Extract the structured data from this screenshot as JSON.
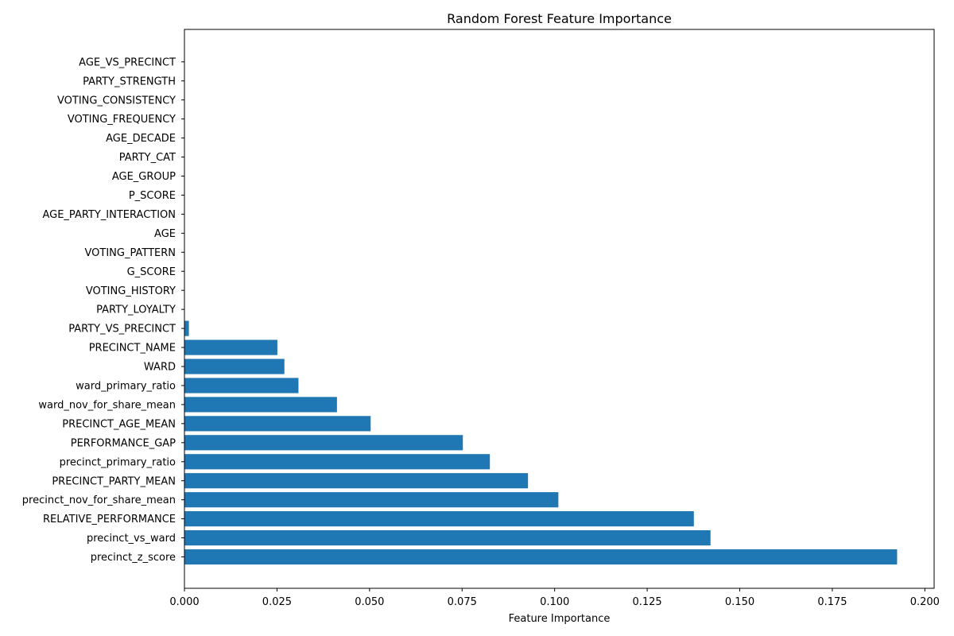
{
  "chart_data": {
    "type": "bar",
    "orientation": "horizontal",
    "title": "Random Forest Feature Importance",
    "xlabel": "Feature Importance",
    "ylabel": "",
    "xlim": [
      0,
      0.2025
    ],
    "xticks": [
      0.0,
      0.025,
      0.05,
      0.075,
      0.1,
      0.125,
      0.15,
      0.175,
      0.2
    ],
    "xtick_labels": [
      "0.000",
      "0.025",
      "0.050",
      "0.075",
      "0.100",
      "0.125",
      "0.150",
      "0.175",
      "0.200"
    ],
    "grid": false,
    "bar_color": "#1f77b4",
    "categories": [
      "precinct_z_score",
      "precinct_vs_ward",
      "RELATIVE_PERFORMANCE",
      "precinct_nov_for_share_mean",
      "PRECINCT_PARTY_MEAN",
      "precinct_primary_ratio",
      "PERFORMANCE_GAP",
      "PRECINCT_AGE_MEAN",
      "ward_nov_for_share_mean",
      "ward_primary_ratio",
      "WARD",
      "PRECINCT_NAME",
      "PARTY_VS_PRECINCT",
      "PARTY_LOYALTY",
      "VOTING_HISTORY",
      "G_SCORE",
      "VOTING_PATTERN",
      "AGE",
      "AGE_PARTY_INTERACTION",
      "P_SCORE",
      "AGE_GROUP",
      "PARTY_CAT",
      "AGE_DECADE",
      "VOTING_FREQUENCY",
      "VOTING_CONSISTENCY",
      "PARTY_STRENGTH",
      "AGE_VS_PRECINCT"
    ],
    "values": [
      0.1925,
      0.1421,
      0.1376,
      0.101,
      0.0928,
      0.0825,
      0.0752,
      0.0503,
      0.0412,
      0.0308,
      0.027,
      0.0251,
      0.0012,
      0.0,
      0.0,
      0.0,
      0.0,
      0.0,
      0.0,
      0.0,
      0.0,
      0.0,
      0.0,
      0.0,
      0.0,
      0.0,
      0.0
    ]
  }
}
